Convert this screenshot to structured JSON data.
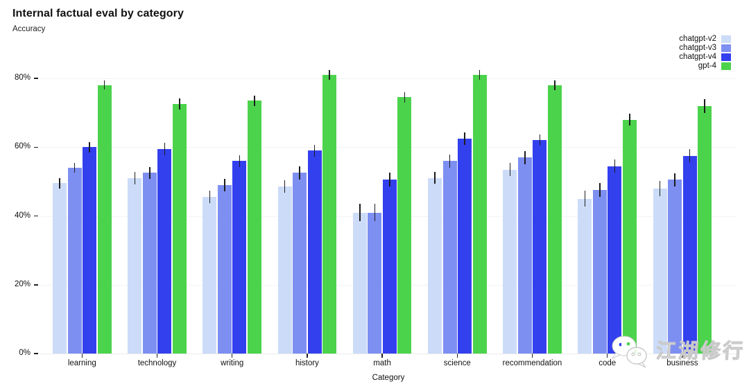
{
  "header": {
    "title": "Internal factual eval by category",
    "subtitle": "Accuracy"
  },
  "chart_data": {
    "type": "bar",
    "title": "Internal factual eval by category",
    "xlabel": "Category",
    "ylabel": "Accuracy",
    "legend_position": "top-right",
    "grid": true,
    "ylim": [
      0,
      86
    ],
    "yticks": [
      {
        "value": 0,
        "label": "0%"
      },
      {
        "value": 20,
        "label": "20%"
      },
      {
        "value": 40,
        "label": "40%"
      },
      {
        "value": 60,
        "label": "60%"
      },
      {
        "value": 80,
        "label": "80%"
      }
    ],
    "categories": [
      "learning",
      "technology",
      "writing",
      "history",
      "math",
      "science",
      "recommendation",
      "code",
      "business"
    ],
    "series": [
      {
        "name": "chatgpt-v2",
        "color": "#ccdcf8",
        "values": [
          49.5,
          51,
          45.5,
          48.5,
          41,
          51,
          53.5,
          45,
          48
        ],
        "errors": [
          1.5,
          1.8,
          1.8,
          1.8,
          2.5,
          1.7,
          1.9,
          2.3,
          2.2
        ]
      },
      {
        "name": "chatgpt-v3",
        "color": "#7e8ff2",
        "values": [
          54,
          52.5,
          49,
          52.5,
          41,
          56,
          57,
          47.5,
          50.5
        ],
        "errors": [
          1.5,
          1.8,
          1.8,
          2.0,
          2.5,
          1.9,
          1.9,
          2.0,
          1.9
        ]
      },
      {
        "name": "chatgpt-v4",
        "color": "#3340ee",
        "values": [
          60,
          59.5,
          56,
          59,
          50.5,
          62.5,
          62,
          54.5,
          57.5
        ],
        "errors": [
          1.5,
          1.8,
          1.7,
          1.7,
          2.0,
          1.8,
          1.6,
          2.0,
          1.9
        ]
      },
      {
        "name": "gpt-4",
        "color": "#4cd34c",
        "values": [
          78,
          72.5,
          73.5,
          81,
          74.5,
          81,
          78,
          68,
          72
        ],
        "errors": [
          1.3,
          1.6,
          1.5,
          1.4,
          1.5,
          1.5,
          1.4,
          1.8,
          2.0
        ]
      }
    ]
  },
  "watermark": {
    "text": "江湖修行",
    "icon": "wechat-bubbles-icon"
  }
}
